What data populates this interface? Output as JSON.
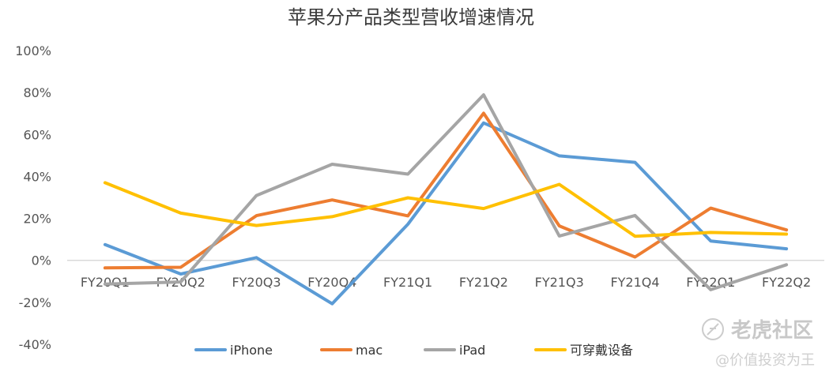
{
  "chart_data": {
    "type": "line",
    "title": "苹果分产品类型营收增速情况",
    "xlabel": "",
    "ylabel": "",
    "categories": [
      "FY20Q1",
      "FY20Q2",
      "FY20Q3",
      "FY20Q4",
      "FY21Q1",
      "FY21Q2",
      "FY21Q3",
      "FY21Q4",
      "FY22Q1",
      "FY22Q2"
    ],
    "y_ticks": [
      "100%",
      "80%",
      "60%",
      "40%",
      "20%",
      "0%",
      "-20%",
      "-40%"
    ],
    "ylim": [
      -40,
      100
    ],
    "grid": false,
    "legend_position": "bottom",
    "series": [
      {
        "name": "iPhone",
        "color": "#5B9BD5",
        "values": [
          7.5,
          -6.5,
          1.3,
          -20.7,
          17.2,
          65.5,
          49.8,
          46.7,
          9.2,
          5.5
        ]
      },
      {
        "name": "mac",
        "color": "#ED7D31",
        "values": [
          -3.6,
          -3.3,
          21.3,
          28.8,
          21.2,
          70.1,
          16.4,
          1.6,
          24.9,
          14.5
        ]
      },
      {
        "name": "iPad",
        "color": "#A5A5A5",
        "values": [
          -11.3,
          -10.3,
          30.9,
          45.8,
          41.1,
          78.9,
          11.6,
          21.4,
          -14.0,
          -2.1
        ]
      },
      {
        "name": "可穿戴设备",
        "color": "#FFC000",
        "values": [
          37.0,
          22.5,
          16.6,
          20.8,
          29.8,
          24.7,
          36.2,
          11.5,
          13.3,
          12.5
        ]
      }
    ]
  },
  "watermark": {
    "title": "老虎社区",
    "subtitle": "@价值投资为王"
  }
}
